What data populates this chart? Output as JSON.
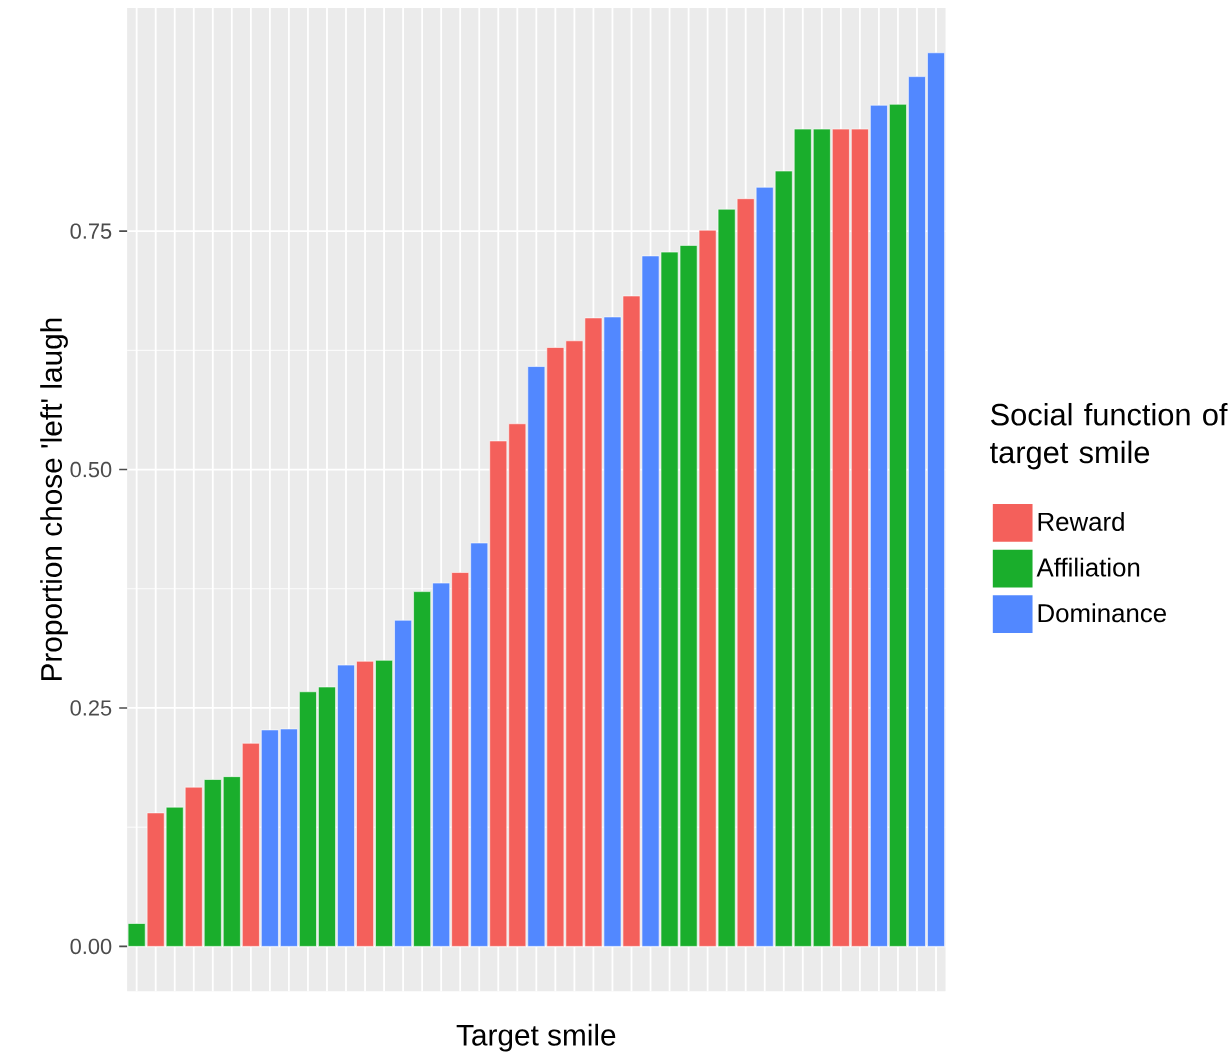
{
  "chart_data": {
    "type": "bar",
    "xlabel": "Target smile",
    "ylabel": "Proportion chose 'left' laugh",
    "legend_title": "Social function of target smile",
    "categories": [
      null,
      null,
      null,
      null,
      null,
      null,
      null,
      null,
      null,
      null,
      null,
      null,
      null,
      null,
      null,
      null,
      null,
      null,
      null,
      null,
      null,
      null,
      null,
      null,
      null,
      null,
      null,
      null,
      null,
      null,
      null,
      null,
      null,
      null,
      null,
      null,
      null,
      null,
      null,
      null,
      null,
      null,
      null
    ],
    "series": [
      {
        "name": "Reward",
        "color": "#f4605b",
        "values": [
          null,
          0.14,
          null,
          0.167,
          null,
          null,
          0.213,
          null,
          null,
          null,
          null,
          null,
          0.299,
          null,
          null,
          null,
          null,
          0.392,
          null,
          0.53,
          0.548,
          null,
          0.628,
          0.635,
          0.659,
          null,
          0.682,
          null,
          null,
          null,
          0.751,
          null,
          0.784,
          null,
          null,
          null,
          null,
          0.857,
          0.857,
          null,
          null,
          null,
          null
        ]
      },
      {
        "name": "Affiliation",
        "color": "#1aae2c",
        "values": [
          0.024,
          null,
          0.146,
          null,
          0.175,
          0.178,
          null,
          null,
          null,
          0.267,
          0.272,
          null,
          null,
          0.3,
          null,
          0.372,
          null,
          null,
          null,
          null,
          null,
          null,
          null,
          null,
          null,
          null,
          null,
          null,
          0.728,
          0.735,
          null,
          0.773,
          null,
          null,
          0.813,
          0.857,
          0.857,
          null,
          null,
          null,
          0.883,
          null,
          null
        ]
      },
      {
        "name": "Dominance",
        "color": "#5288ff",
        "values": [
          null,
          null,
          null,
          null,
          null,
          null,
          null,
          0.227,
          0.228,
          null,
          null,
          0.295,
          null,
          null,
          0.342,
          null,
          0.381,
          null,
          0.423,
          null,
          null,
          0.608,
          null,
          null,
          null,
          0.66,
          null,
          0.724,
          null,
          null,
          null,
          null,
          null,
          0.796,
          null,
          null,
          null,
          null,
          null,
          0.882,
          null,
          0.912,
          0.937
        ]
      }
    ],
    "ylim": [
      -0.047,
      0.984
    ],
    "yticks": [
      {
        "value": 0,
        "label": "0.00"
      },
      {
        "value": 0.25,
        "label": "0.25"
      },
      {
        "value": 0.5,
        "label": "0.50"
      },
      {
        "value": 0.75,
        "label": "0.75"
      }
    ],
    "grid": true,
    "legend": "right",
    "tick_labels": "y"
  }
}
